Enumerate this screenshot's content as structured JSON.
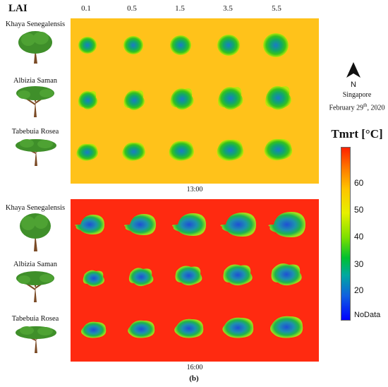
{
  "header": {
    "lai_label": "LAI",
    "lai_values": [
      "0.1",
      "0.5",
      "1.5",
      "3.5",
      "5.5"
    ]
  },
  "species": [
    "Khaya Senegalensis",
    "Albizia Saman",
    "Tabebuia Rosea"
  ],
  "panels": [
    {
      "time": "13:00",
      "bg": "#ffc21a"
    },
    {
      "time": "16:00",
      "bg": "#ff2a10"
    }
  ],
  "panel_letter": "(b)",
  "north_label": "N",
  "location": {
    "city": "Singapore",
    "date_main": "February 29",
    "date_sup": "th",
    "date_year": ", 2020"
  },
  "legend": {
    "title": "Tmrt [°C]",
    "ticks": [
      "60",
      "50",
      "40",
      "30",
      "20"
    ],
    "nodata": "NoData",
    "colors": [
      "#ff2200",
      "#ff7a00",
      "#ffc400",
      "#e6f000",
      "#7ee000",
      "#00c030",
      "#00a8a0",
      "#1060e0",
      "#0000ff"
    ]
  }
}
